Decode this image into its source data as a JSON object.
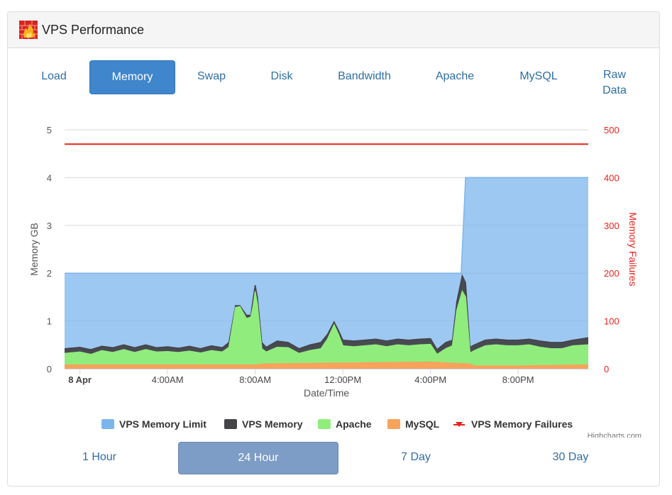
{
  "panel": {
    "title": "VPS Performance",
    "logo_icon": "fire-wall-icon"
  },
  "tabs": [
    {
      "label": "Load",
      "active": false
    },
    {
      "label": "Memory",
      "active": true
    },
    {
      "label": "Swap",
      "active": false
    },
    {
      "label": "Disk",
      "active": false
    },
    {
      "label": "Bandwidth",
      "active": false
    },
    {
      "label": "Apache",
      "active": false
    },
    {
      "label": "MySQL",
      "active": false
    },
    {
      "label": "Raw Data",
      "active": false
    }
  ],
  "ranges": [
    {
      "label": "1 Hour",
      "active": false
    },
    {
      "label": "24 Hour",
      "active": true
    },
    {
      "label": "7 Day",
      "active": false
    },
    {
      "label": "30 Day",
      "active": false
    }
  ],
  "credits": "Highcharts.com",
  "colors": {
    "limit": "#7cb5ec",
    "vps": "#434348",
    "apache": "#90ed7d",
    "mysql": "#f7a35c",
    "failures": "#e8221b"
  },
  "chart_data": {
    "type": "area",
    "title": "",
    "xlabel": "Date/Time",
    "ylabel": "Memory GB",
    "y2label": "Memory Failures",
    "ylim": [
      0,
      5
    ],
    "y2lim": [
      0,
      500
    ],
    "yticks": [
      "0",
      "1",
      "2",
      "3",
      "4",
      "5"
    ],
    "y2ticks": [
      "0",
      "100",
      "200",
      "300",
      "400",
      "500"
    ],
    "xlim": [
      -0.7,
      23.2
    ],
    "xticks": [
      {
        "x": 0,
        "label": "8 Apr",
        "bold": true
      },
      {
        "x": 4,
        "label": "4:00AM",
        "bold": false
      },
      {
        "x": 8,
        "label": "8:00AM",
        "bold": false
      },
      {
        "x": 12,
        "label": "12:00PM",
        "bold": false
      },
      {
        "x": 16,
        "label": "4:00PM",
        "bold": false
      },
      {
        "x": 20,
        "label": "8:00PM",
        "bold": false
      }
    ],
    "legend_position": "bottom",
    "grid": true,
    "series": [
      {
        "name": "VPS Memory Limit",
        "axis": "left",
        "kind": "area",
        "points": [
          [
            -0.7,
            2
          ],
          [
            17.4,
            2
          ],
          [
            17.6,
            4
          ],
          [
            23.2,
            4
          ]
        ]
      },
      {
        "name": "VPS Memory",
        "axis": "left",
        "kind": "area",
        "points": [
          [
            -0.7,
            0.42
          ],
          [
            0,
            0.45
          ],
          [
            0.5,
            0.4
          ],
          [
            1,
            0.47
          ],
          [
            1.5,
            0.44
          ],
          [
            2,
            0.5
          ],
          [
            2.5,
            0.44
          ],
          [
            3,
            0.5
          ],
          [
            3.5,
            0.44
          ],
          [
            4,
            0.46
          ],
          [
            4.5,
            0.43
          ],
          [
            5,
            0.47
          ],
          [
            5.5,
            0.42
          ],
          [
            6,
            0.48
          ],
          [
            6.5,
            0.44
          ],
          [
            6.8,
            0.55
          ],
          [
            7.1,
            1.32
          ],
          [
            7.3,
            1.32
          ],
          [
            7.6,
            1.12
          ],
          [
            7.8,
            1.12
          ],
          [
            7.9,
            1.45
          ],
          [
            8,
            1.75
          ],
          [
            8.1,
            1.5
          ],
          [
            8.3,
            0.55
          ],
          [
            8.5,
            0.45
          ],
          [
            9,
            0.58
          ],
          [
            9.5,
            0.55
          ],
          [
            10,
            0.42
          ],
          [
            10.5,
            0.5
          ],
          [
            11,
            0.55
          ],
          [
            11.3,
            0.72
          ],
          [
            11.6,
            0.98
          ],
          [
            11.8,
            0.8
          ],
          [
            12,
            0.6
          ],
          [
            12.5,
            0.58
          ],
          [
            13,
            0.6
          ],
          [
            13.5,
            0.62
          ],
          [
            14,
            0.58
          ],
          [
            14.5,
            0.62
          ],
          [
            15,
            0.6
          ],
          [
            15.5,
            0.62
          ],
          [
            16,
            0.63
          ],
          [
            16.3,
            0.4
          ],
          [
            16.7,
            0.55
          ],
          [
            17,
            0.6
          ],
          [
            17.2,
            1.4
          ],
          [
            17.45,
            1.95
          ],
          [
            17.6,
            1.8
          ],
          [
            17.8,
            0.45
          ],
          [
            18,
            0.5
          ],
          [
            18.5,
            0.6
          ],
          [
            19,
            0.62
          ],
          [
            19.5,
            0.6
          ],
          [
            20,
            0.6
          ],
          [
            20.5,
            0.62
          ],
          [
            21,
            0.58
          ],
          [
            21.5,
            0.55
          ],
          [
            22,
            0.55
          ],
          [
            22.5,
            0.6
          ],
          [
            23.2,
            0.65
          ]
        ]
      },
      {
        "name": "Apache",
        "axis": "left",
        "kind": "area",
        "points": [
          [
            -0.7,
            0.32
          ],
          [
            0,
            0.35
          ],
          [
            0.5,
            0.3
          ],
          [
            1,
            0.38
          ],
          [
            1.5,
            0.34
          ],
          [
            2,
            0.4
          ],
          [
            2.5,
            0.34
          ],
          [
            3,
            0.4
          ],
          [
            3.5,
            0.35
          ],
          [
            4,
            0.36
          ],
          [
            4.5,
            0.34
          ],
          [
            5,
            0.37
          ],
          [
            5.5,
            0.33
          ],
          [
            6,
            0.38
          ],
          [
            6.5,
            0.35
          ],
          [
            6.8,
            0.45
          ],
          [
            7.1,
            1.28
          ],
          [
            7.3,
            1.3
          ],
          [
            7.6,
            1.05
          ],
          [
            7.8,
            1.08
          ],
          [
            7.9,
            1.3
          ],
          [
            8,
            1.62
          ],
          [
            8.1,
            1.35
          ],
          [
            8.3,
            0.42
          ],
          [
            8.5,
            0.35
          ],
          [
            9,
            0.45
          ],
          [
            9.5,
            0.44
          ],
          [
            10,
            0.32
          ],
          [
            10.5,
            0.38
          ],
          [
            11,
            0.42
          ],
          [
            11.3,
            0.62
          ],
          [
            11.6,
            0.92
          ],
          [
            11.8,
            0.72
          ],
          [
            12,
            0.48
          ],
          [
            12.5,
            0.46
          ],
          [
            13,
            0.48
          ],
          [
            13.5,
            0.5
          ],
          [
            14,
            0.46
          ],
          [
            14.5,
            0.5
          ],
          [
            15,
            0.48
          ],
          [
            15.5,
            0.5
          ],
          [
            16,
            0.51
          ],
          [
            16.3,
            0.3
          ],
          [
            16.7,
            0.42
          ],
          [
            17,
            0.48
          ],
          [
            17.2,
            1.22
          ],
          [
            17.45,
            1.62
          ],
          [
            17.6,
            1.5
          ],
          [
            17.8,
            0.33
          ],
          [
            18,
            0.38
          ],
          [
            18.5,
            0.48
          ],
          [
            19,
            0.5
          ],
          [
            19.5,
            0.48
          ],
          [
            20,
            0.48
          ],
          [
            20.5,
            0.5
          ],
          [
            21,
            0.45
          ],
          [
            21.5,
            0.42
          ],
          [
            22,
            0.42
          ],
          [
            22.5,
            0.48
          ],
          [
            23.2,
            0.5
          ]
        ]
      },
      {
        "name": "MySQL",
        "axis": "left",
        "kind": "area",
        "points": [
          [
            -0.7,
            0.08
          ],
          [
            3,
            0.08
          ],
          [
            6,
            0.08
          ],
          [
            8,
            0.08
          ],
          [
            8.4,
            0.1
          ],
          [
            12,
            0.12
          ],
          [
            16,
            0.14
          ],
          [
            17.8,
            0.1
          ],
          [
            18,
            0.06
          ],
          [
            20,
            0.06
          ],
          [
            23.2,
            0.08
          ]
        ]
      },
      {
        "name": "VPS Memory Failures",
        "axis": "right",
        "kind": "line",
        "points": [
          [
            -0.7,
            470
          ],
          [
            23.2,
            470
          ]
        ]
      }
    ]
  }
}
